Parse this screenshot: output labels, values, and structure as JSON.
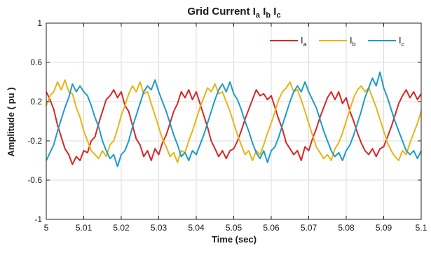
{
  "chart_data": {
    "type": "line",
    "title": {
      "prefix": "Grid Current ",
      "terms": [
        {
          "base": "I",
          "sub": "a"
        },
        {
          "base": "I",
          "sub": "b"
        },
        {
          "base": "I",
          "sub": "c"
        }
      ]
    },
    "xlabel": "Time (sec)",
    "ylabel": "Amplitude ( pu )",
    "xlim": [
      5.0,
      5.1
    ],
    "ylim": [
      -1,
      1
    ],
    "x_ticks": [
      5,
      5.01,
      5.02,
      5.03,
      5.04,
      5.05,
      5.06,
      5.07,
      5.08,
      5.09,
      5.1
    ],
    "x_tick_labels": [
      "5",
      "5.01",
      "5.02",
      "5.03",
      "5.04",
      "5.05",
      "5.06",
      "5.07",
      "5.08",
      "5.09",
      "5.1"
    ],
    "y_ticks": [
      -1,
      -0.6,
      -0.2,
      0.2,
      0.6,
      1
    ],
    "y_tick_labels": [
      "-1",
      "-0.6",
      "-0.2",
      "0.2",
      "0.6",
      "1"
    ],
    "grid": true,
    "legend_position": "top-right",
    "series": [
      {
        "name": "Ia",
        "label_base": "I",
        "label_sub": "a",
        "color": "#d62728",
        "x": [
          5.0,
          5.001,
          5.002,
          5.003,
          5.004,
          5.005,
          5.006,
          5.007,
          5.008,
          5.009,
          5.01,
          5.011,
          5.012,
          5.013,
          5.014,
          5.015,
          5.016,
          5.017,
          5.018,
          5.019,
          5.02,
          5.021,
          5.022,
          5.023,
          5.024,
          5.025,
          5.026,
          5.027,
          5.028,
          5.029,
          5.03,
          5.031,
          5.032,
          5.033,
          5.034,
          5.035,
          5.036,
          5.037,
          5.038,
          5.039,
          5.04,
          5.041,
          5.042,
          5.043,
          5.044,
          5.045,
          5.046,
          5.047,
          5.048,
          5.049,
          5.05,
          5.051,
          5.052,
          5.053,
          5.054,
          5.055,
          5.056,
          5.057,
          5.058,
          5.059,
          5.06,
          5.061,
          5.062,
          5.063,
          5.064,
          5.065,
          5.066,
          5.067,
          5.068,
          5.069,
          5.07,
          5.071,
          5.072,
          5.073,
          5.074,
          5.075,
          5.076,
          5.077,
          5.078,
          5.079,
          5.08,
          5.081,
          5.082,
          5.083,
          5.084,
          5.085,
          5.086,
          5.087,
          5.088,
          5.089,
          5.09,
          5.091,
          5.092,
          5.093,
          5.094,
          5.095,
          5.096,
          5.097,
          5.098,
          5.099,
          5.1
        ],
        "values": [
          0.3,
          0.22,
          0.12,
          -0.04,
          -0.16,
          -0.28,
          -0.34,
          -0.44,
          -0.36,
          -0.4,
          -0.3,
          -0.32,
          -0.2,
          -0.16,
          -0.02,
          0.1,
          0.22,
          0.26,
          0.32,
          0.24,
          0.3,
          0.16,
          0.1,
          -0.04,
          -0.18,
          -0.24,
          -0.36,
          -0.3,
          -0.4,
          -0.28,
          -0.34,
          -0.22,
          -0.14,
          -0.02,
          0.1,
          0.18,
          0.3,
          0.24,
          0.32,
          0.22,
          0.3,
          0.18,
          0.06,
          -0.06,
          -0.2,
          -0.28,
          -0.36,
          -0.3,
          -0.38,
          -0.3,
          -0.28,
          -0.2,
          -0.1,
          0.02,
          0.12,
          0.22,
          0.32,
          0.26,
          0.28,
          0.22,
          0.26,
          0.14,
          0.02,
          -0.08,
          -0.22,
          -0.28,
          -0.34,
          -0.3,
          -0.4,
          -0.26,
          -0.3,
          -0.18,
          -0.08,
          0.04,
          0.14,
          0.24,
          0.3,
          0.22,
          0.3,
          0.18,
          0.24,
          0.1,
          0.0,
          -0.12,
          -0.22,
          -0.3,
          -0.34,
          -0.28,
          -0.36,
          -0.28,
          -0.26,
          -0.16,
          -0.06,
          0.06,
          0.18,
          0.26,
          0.32,
          0.24,
          0.3,
          0.22,
          0.28
        ]
      },
      {
        "name": "Ib",
        "label_base": "I",
        "label_sub": "b",
        "color": "#e8b416",
        "x": [
          5.0,
          5.001,
          5.002,
          5.003,
          5.004,
          5.005,
          5.006,
          5.007,
          5.008,
          5.009,
          5.01,
          5.011,
          5.012,
          5.013,
          5.014,
          5.015,
          5.016,
          5.017,
          5.018,
          5.019,
          5.02,
          5.021,
          5.022,
          5.023,
          5.024,
          5.025,
          5.026,
          5.027,
          5.028,
          5.029,
          5.03,
          5.031,
          5.032,
          5.033,
          5.034,
          5.035,
          5.036,
          5.037,
          5.038,
          5.039,
          5.04,
          5.041,
          5.042,
          5.043,
          5.044,
          5.045,
          5.046,
          5.047,
          5.048,
          5.049,
          5.05,
          5.051,
          5.052,
          5.053,
          5.054,
          5.055,
          5.056,
          5.057,
          5.058,
          5.059,
          5.06,
          5.061,
          5.062,
          5.063,
          5.064,
          5.065,
          5.066,
          5.067,
          5.068,
          5.069,
          5.07,
          5.071,
          5.072,
          5.073,
          5.074,
          5.075,
          5.076,
          5.077,
          5.078,
          5.079,
          5.08,
          5.081,
          5.082,
          5.083,
          5.084,
          5.085,
          5.086,
          5.087,
          5.088,
          5.089,
          5.09,
          5.091,
          5.092,
          5.093,
          5.094,
          5.095,
          5.096,
          5.097,
          5.098,
          5.099,
          5.1
        ],
        "values": [
          0.16,
          0.26,
          0.3,
          0.4,
          0.32,
          0.42,
          0.3,
          0.28,
          0.14,
          0.04,
          -0.1,
          -0.2,
          -0.3,
          -0.34,
          -0.38,
          -0.3,
          -0.36,
          -0.24,
          -0.2,
          -0.08,
          0.06,
          0.16,
          0.28,
          0.36,
          0.3,
          0.4,
          0.28,
          0.3,
          0.18,
          0.06,
          -0.06,
          -0.18,
          -0.26,
          -0.36,
          -0.32,
          -0.42,
          -0.3,
          -0.32,
          -0.2,
          -0.1,
          0.02,
          0.14,
          0.24,
          0.34,
          0.3,
          0.38,
          0.28,
          0.3,
          0.2,
          0.1,
          -0.02,
          -0.14,
          -0.24,
          -0.34,
          -0.3,
          -0.4,
          -0.3,
          -0.34,
          -0.24,
          -0.12,
          -0.02,
          0.1,
          0.22,
          0.3,
          0.34,
          0.4,
          0.3,
          0.32,
          0.22,
          0.1,
          -0.02,
          -0.14,
          -0.26,
          -0.32,
          -0.38,
          -0.34,
          -0.4,
          -0.28,
          -0.22,
          -0.12,
          0.0,
          0.12,
          0.24,
          0.32,
          0.36,
          0.3,
          0.34,
          0.24,
          0.14,
          0.02,
          -0.1,
          -0.22,
          -0.3,
          -0.36,
          -0.4,
          -0.3,
          -0.34,
          -0.22,
          -0.12,
          -0.02,
          0.1
        ]
      },
      {
        "name": "Ic",
        "label_base": "I",
        "label_sub": "c",
        "color": "#1f9bc8",
        "x": [
          5.0,
          5.001,
          5.002,
          5.003,
          5.004,
          5.005,
          5.006,
          5.007,
          5.008,
          5.009,
          5.01,
          5.011,
          5.012,
          5.013,
          5.014,
          5.015,
          5.016,
          5.017,
          5.018,
          5.019,
          5.02,
          5.021,
          5.022,
          5.023,
          5.024,
          5.025,
          5.026,
          5.027,
          5.028,
          5.029,
          5.03,
          5.031,
          5.032,
          5.033,
          5.034,
          5.035,
          5.036,
          5.037,
          5.038,
          5.039,
          5.04,
          5.041,
          5.042,
          5.043,
          5.044,
          5.045,
          5.046,
          5.047,
          5.048,
          5.049,
          5.05,
          5.051,
          5.052,
          5.053,
          5.054,
          5.055,
          5.056,
          5.057,
          5.058,
          5.059,
          5.06,
          5.061,
          5.062,
          5.063,
          5.064,
          5.065,
          5.066,
          5.067,
          5.068,
          5.069,
          5.07,
          5.071,
          5.072,
          5.073,
          5.074,
          5.075,
          5.076,
          5.077,
          5.078,
          5.079,
          5.08,
          5.081,
          5.082,
          5.083,
          5.084,
          5.085,
          5.086,
          5.087,
          5.088,
          5.089,
          5.09,
          5.091,
          5.092,
          5.093,
          5.094,
          5.095,
          5.096,
          5.097,
          5.098,
          5.099,
          5.1
        ],
        "values": [
          -0.4,
          -0.32,
          -0.24,
          -0.1,
          0.02,
          0.14,
          0.24,
          0.38,
          0.3,
          0.36,
          0.3,
          0.26,
          0.16,
          0.04,
          -0.06,
          -0.2,
          -0.3,
          -0.38,
          -0.34,
          -0.46,
          -0.34,
          -0.3,
          -0.2,
          -0.06,
          0.06,
          0.18,
          0.3,
          0.36,
          0.32,
          0.42,
          0.3,
          0.2,
          0.1,
          -0.02,
          -0.14,
          -0.24,
          -0.36,
          -0.32,
          -0.4,
          -0.3,
          -0.34,
          -0.24,
          -0.14,
          -0.02,
          0.1,
          0.22,
          0.32,
          0.38,
          0.3,
          0.4,
          0.28,
          0.22,
          0.12,
          0.0,
          -0.1,
          -0.22,
          -0.32,
          -0.38,
          -0.3,
          -0.42,
          -0.3,
          -0.26,
          -0.16,
          -0.04,
          0.08,
          0.2,
          0.3,
          0.36,
          0.3,
          0.4,
          0.3,
          0.22,
          0.14,
          0.02,
          -0.1,
          -0.2,
          -0.3,
          -0.36,
          -0.32,
          -0.4,
          -0.3,
          -0.24,
          -0.14,
          -0.02,
          0.1,
          0.24,
          0.34,
          0.44,
          0.36,
          0.5,
          0.34,
          0.24,
          0.12,
          0.0,
          -0.1,
          -0.2,
          -0.3,
          -0.34,
          -0.3,
          -0.38,
          -0.3
        ]
      }
    ]
  }
}
